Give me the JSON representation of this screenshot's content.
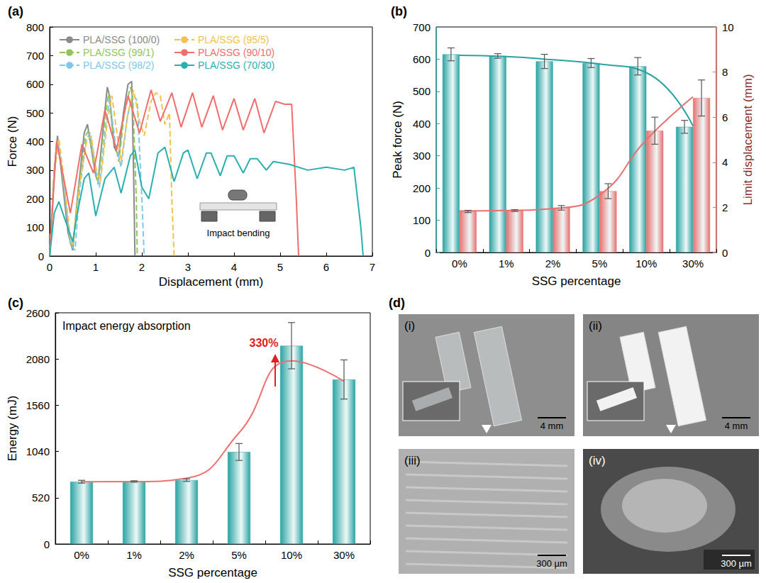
{
  "chart_data": [
    {
      "type": "line",
      "title": "(a)",
      "x_label": "Displacement (mm)",
      "y_label": "Force (N)",
      "xlim": [
        0,
        7
      ],
      "xticks": [
        0,
        1,
        2,
        3,
        4,
        5,
        6,
        7
      ],
      "ylim": [
        0,
        800
      ],
      "yticks": [
        0,
        100,
        200,
        300,
        400,
        500,
        600,
        700,
        800
      ],
      "grid": false,
      "legend": "upper left",
      "annotations": [
        {
          "text": "Impact bending"
        }
      ],
      "series": [
        {
          "name": "PLA/SSG (100/0)",
          "color": "#8a8a8a",
          "line_style": "solid",
          "x": [
            0,
            0.1,
            0.17,
            0.25,
            0.4,
            0.5,
            0.6,
            0.75,
            0.82,
            0.9,
            1.0,
            1.05,
            1.15,
            1.25,
            1.3,
            1.4,
            1.5,
            1.6,
            1.7,
            1.78,
            1.82,
            1.85
          ],
          "values": [
            0,
            300,
            420,
            300,
            80,
            20,
            200,
            430,
            460,
            380,
            280,
            260,
            430,
            590,
            560,
            380,
            350,
            500,
            600,
            610,
            300,
            0
          ]
        },
        {
          "name": "PLA/SSG (99/1)",
          "color": "#92c45c",
          "line_style": "dashed",
          "x": [
            0,
            0.1,
            0.18,
            0.3,
            0.45,
            0.5,
            0.62,
            0.78,
            0.85,
            0.95,
            1.05,
            1.2,
            1.28,
            1.38,
            1.5,
            1.62,
            1.75,
            1.8,
            1.88,
            1.9
          ],
          "values": [
            0,
            290,
            410,
            250,
            50,
            30,
            220,
            420,
            440,
            320,
            250,
            480,
            570,
            420,
            330,
            500,
            590,
            560,
            200,
            0
          ]
        },
        {
          "name": "PLA/SSG (98/2)",
          "color": "#7ec8e8",
          "line_style": "dashed",
          "x": [
            0,
            0.1,
            0.18,
            0.3,
            0.45,
            0.55,
            0.65,
            0.8,
            0.88,
            1.0,
            1.08,
            1.22,
            1.3,
            1.42,
            1.55,
            1.68,
            1.8,
            1.9,
            2.0,
            2.05
          ],
          "values": [
            0,
            280,
            400,
            260,
            40,
            20,
            230,
            410,
            430,
            300,
            240,
            460,
            550,
            400,
            310,
            480,
            570,
            540,
            200,
            0
          ]
        },
        {
          "name": "PLA/SSG (95/5)",
          "color": "#f2c14e",
          "line_style": "dashed",
          "x": [
            0,
            0.1,
            0.2,
            0.3,
            0.45,
            0.5,
            0.65,
            0.8,
            0.9,
            1.0,
            1.1,
            1.25,
            1.35,
            1.45,
            1.55,
            1.7,
            1.82,
            1.95,
            2.05,
            2.2,
            2.3,
            2.4,
            2.5,
            2.6,
            2.65,
            2.7
          ],
          "values": [
            0,
            290,
            410,
            280,
            60,
            40,
            250,
            400,
            420,
            310,
            260,
            470,
            560,
            440,
            330,
            500,
            580,
            470,
            420,
            540,
            570,
            560,
            460,
            500,
            200,
            0
          ]
        },
        {
          "name": "PLA/SSG (90/10)",
          "color": "#f26d6d",
          "line_style": "solid",
          "x": [
            0,
            0.15,
            0.45,
            0.7,
            0.95,
            1.2,
            1.45,
            1.7,
            1.95,
            2.2,
            2.4,
            2.65,
            2.85,
            3.1,
            3.3,
            3.55,
            3.75,
            4.0,
            4.2,
            4.45,
            4.65,
            4.9,
            5.1,
            5.25,
            5.35,
            5.4
          ],
          "values": [
            0,
            400,
            150,
            390,
            290,
            510,
            370,
            560,
            430,
            580,
            470,
            570,
            450,
            570,
            450,
            560,
            440,
            550,
            440,
            550,
            430,
            540,
            530,
            530,
            200,
            0
          ]
        },
        {
          "name": "PLA/SSG (70/30)",
          "color": "#2ab0b0",
          "line_style": "solid",
          "x": [
            0,
            0.1,
            0.2,
            0.35,
            0.5,
            0.6,
            0.75,
            0.85,
            1.0,
            1.2,
            1.4,
            1.55,
            1.75,
            1.85,
            2.0,
            2.15,
            2.35,
            2.5,
            2.7,
            2.9,
            3.0,
            3.2,
            3.4,
            3.5,
            3.7,
            3.85,
            4.0,
            4.2,
            4.35,
            4.5,
            4.7,
            4.85,
            5.2,
            5.6,
            6.0,
            6.4,
            6.6,
            6.75,
            6.8
          ],
          "values": [
            0,
            150,
            190,
            120,
            50,
            150,
            270,
            290,
            140,
            270,
            310,
            220,
            350,
            370,
            240,
            200,
            360,
            380,
            260,
            360,
            370,
            270,
            360,
            360,
            280,
            350,
            350,
            290,
            340,
            340,
            300,
            330,
            320,
            300,
            310,
            300,
            310,
            100,
            0
          ]
        }
      ]
    },
    {
      "type": "bar",
      "title": "(b)",
      "x_label": "SSG percentage",
      "y_label": "Peak force (N)",
      "y2_label": "Limit displacement (mm)",
      "categories": [
        "0%",
        "1%",
        "2%",
        "5%",
        "10%",
        "30%"
      ],
      "ylim": [
        0,
        700
      ],
      "yticks": [
        0,
        100,
        200,
        300,
        400,
        500,
        600,
        700
      ],
      "y2lim": [
        0,
        10
      ],
      "y2ticks": [
        0,
        2,
        4,
        6,
        8,
        10
      ],
      "grid": false,
      "series": [
        {
          "type": "bar",
          "color": "#2aa3a3",
          "values": [
            615,
            610,
            593,
            588,
            578,
            390
          ],
          "errors": [
            20,
            7,
            22,
            14,
            27,
            20
          ]
        },
        {
          "type": "bar",
          "axis": "y2",
          "color": "#e87070",
          "values": [
            1.82,
            1.86,
            1.98,
            2.72,
            5.4,
            6.85
          ],
          "errors": [
            0.05,
            0.04,
            0.1,
            0.33,
            0.6,
            0.8
          ]
        },
        {
          "type": "line",
          "color": "#2aa3a3",
          "values": [
            612,
            608,
            598,
            585,
            558,
            392
          ]
        },
        {
          "type": "line",
          "axis": "y2",
          "color": "#e87070",
          "values": [
            1.84,
            1.86,
            1.95,
            2.55,
            5.0,
            6.9
          ]
        }
      ]
    },
    {
      "type": "bar",
      "title": "(c)",
      "x_label": "SSG percentage",
      "y_label": "Energy (mJ)",
      "categories": [
        "0%",
        "1%",
        "2%",
        "5%",
        "10%",
        "30%"
      ],
      "ylim": [
        0,
        2600
      ],
      "yticks": [
        0,
        520,
        1040,
        1560,
        2080,
        2600
      ],
      "grid": false,
      "annotations": [
        {
          "text": "Impact energy absorption"
        },
        {
          "text": "330%",
          "color": "#e02020"
        }
      ],
      "series": [
        {
          "type": "bar",
          "color": "#2aa3a3",
          "values": [
            700,
            703,
            718,
            1035,
            2230,
            1850
          ],
          "errors": [
            16,
            8,
            14,
            95,
            260,
            220
          ]
        },
        {
          "type": "line",
          "color": "#f07070",
          "values": [
            700,
            702,
            740,
            1250,
            2060,
            1830
          ]
        }
      ]
    }
  ],
  "images_panel": {
    "label": "(d)",
    "images": [
      {
        "label": "(i)",
        "scale_bar": "4 mm"
      },
      {
        "label": "(ii)",
        "scale_bar": "4 mm"
      },
      {
        "label": "(iii)",
        "scale_bar": "300 µm"
      },
      {
        "label": "(iv)",
        "scale_bar": "300 µm"
      }
    ]
  }
}
